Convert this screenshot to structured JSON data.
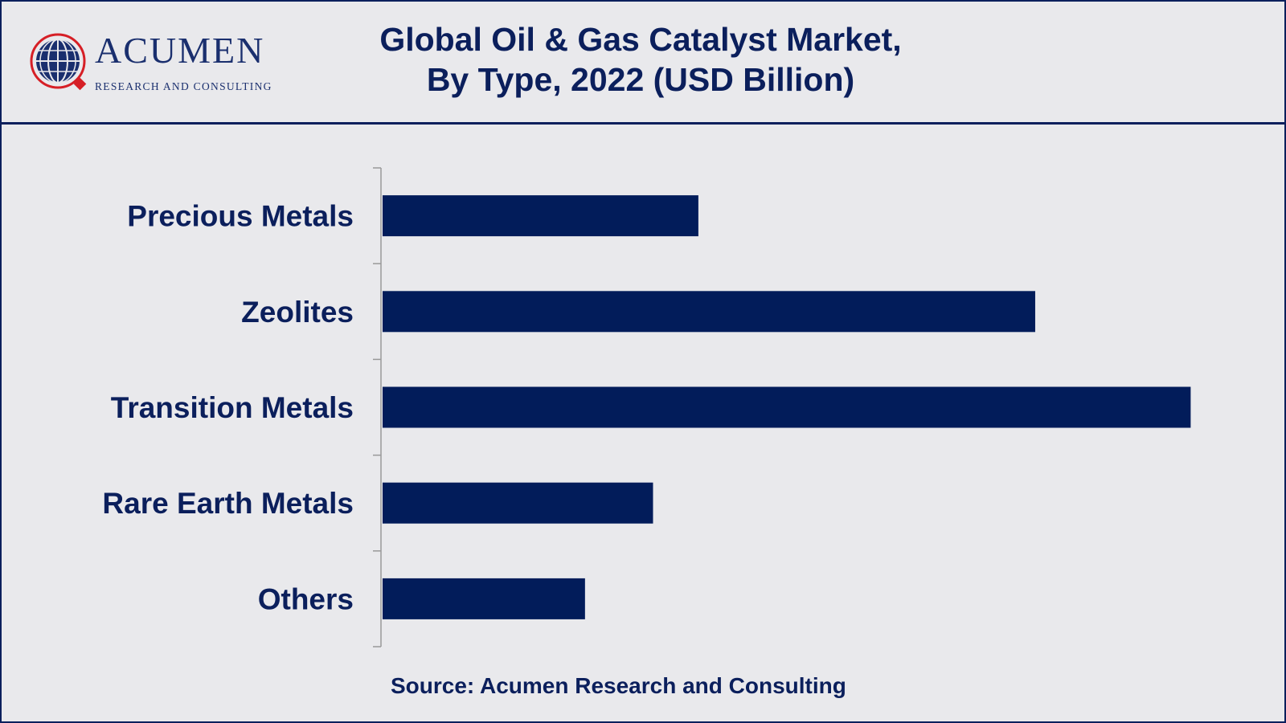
{
  "logo": {
    "name": "ACUMEN",
    "tagline": "RESEARCH AND CONSULTING"
  },
  "colors": {
    "bar": "#021c5a",
    "text": "#0b1f5c",
    "axis": "#999999",
    "background": "#e9e9ec"
  },
  "chart_data": {
    "type": "bar",
    "orientation": "horizontal",
    "title": "Global Oil & Gas Catalyst Market, By Type, 2022 (USD Billion)",
    "title_lines": [
      "Global Oil & Gas Catalyst Market,",
      "By Type, 2022 (USD Billion)"
    ],
    "categories": [
      "Precious Metals",
      "Zeolites",
      "Transition Metals",
      "Rare Earth Metals",
      "Others"
    ],
    "values": [
      1.95,
      4.03,
      4.99,
      1.67,
      1.25
    ],
    "xlim": [
      0,
      5.4
    ],
    "xlabel": "",
    "ylabel": "",
    "grid": false,
    "legend": "none"
  },
  "source": "Source: Acumen Research and Consulting"
}
